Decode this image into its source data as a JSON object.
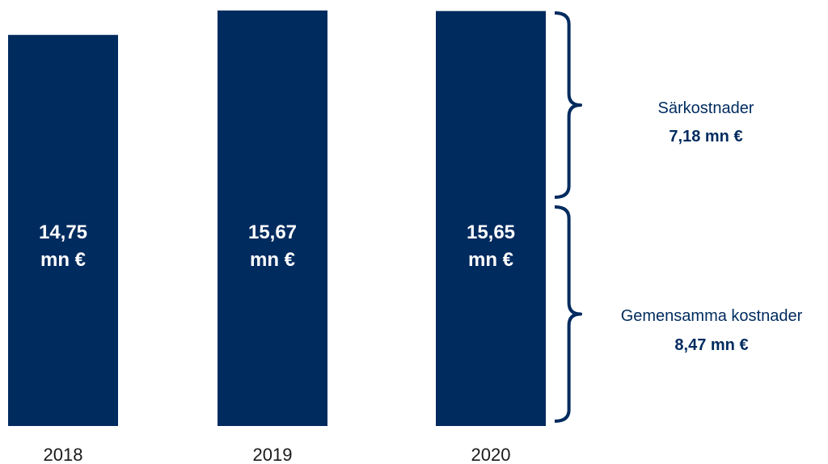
{
  "colors": {
    "bar": "#002b5f",
    "text_on_bar": "#ffffff",
    "axis_text": "#1a1a1a",
    "annotation_text": "#002b5f",
    "brace": "#002b5f"
  },
  "chart_data": {
    "type": "bar",
    "categories": [
      "2018",
      "2019",
      "2020"
    ],
    "values": [
      14.75,
      15.67,
      15.65
    ],
    "bar_labels": [
      {
        "line1": "14,75",
        "line2": "mn €"
      },
      {
        "line1": "15,67",
        "line2": "mn €"
      },
      {
        "line1": "15,65",
        "line2": "mn €"
      }
    ],
    "title": "",
    "xlabel": "",
    "ylabel": "",
    "ylim": [
      0,
      15.67
    ],
    "grid": false,
    "breakdown": {
      "category": "2020",
      "segments": [
        {
          "label": "Särkostnader",
          "value_label": "7,18 mn €",
          "value": 7.18,
          "position": "top"
        },
        {
          "label": "Gemensamma kostnader",
          "value_label": "8,47 mn €",
          "value": 8.47,
          "position": "bottom"
        }
      ]
    }
  }
}
